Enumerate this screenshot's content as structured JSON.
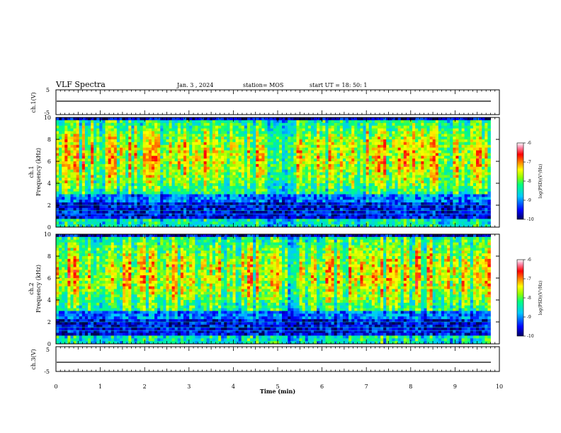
{
  "header": {
    "title": "VLF Spectra",
    "date": "Jan. 3 , 2024",
    "station": "station= MOS",
    "start": "start UT =  18: 50: 1"
  },
  "chart_data": [
    {
      "type": "line",
      "name": "ch1-waveform",
      "ylabel": "ch.1(V)",
      "ylim": [
        -5,
        5
      ],
      "yticks": [
        "5",
        "-5"
      ],
      "x_range": [
        0,
        9.8
      ],
      "baseline": -0.3
    },
    {
      "type": "heatmap",
      "name": "ch1-spectrogram",
      "ylabel": [
        "ch.1",
        "Frequency (kHz)"
      ],
      "ylim": [
        0,
        10
      ],
      "yticks": [
        "0",
        "2",
        "4",
        "6",
        "8",
        "10"
      ],
      "x_range": [
        0,
        9.8
      ],
      "colorbar": {
        "label": "log(PSD)(V²/Hz)",
        "range": [
          -10,
          -6
        ],
        "ticks": [
          "-6",
          "-7",
          "-8",
          "-9",
          "-10"
        ]
      },
      "quiet_segments_min": [
        [
          4.7,
          5.3
        ]
      ]
    },
    {
      "type": "heatmap",
      "name": "ch2-spectrogram",
      "ylabel": [
        "ch.2",
        "Frequency (kHz)"
      ],
      "ylim": [
        0,
        10
      ],
      "yticks": [
        "0",
        "2",
        "4",
        "6",
        "8",
        "10"
      ],
      "x_range": [
        0,
        9.8
      ],
      "colorbar": {
        "label": "log(PSD)(V²/Hz)",
        "range": [
          -10,
          -6
        ],
        "ticks": [
          "-6",
          "-7",
          "-8",
          "-9",
          "-10"
        ]
      },
      "quiet_segments_min": [
        [
          5.2,
          5.4
        ]
      ]
    },
    {
      "type": "line",
      "name": "ch3-waveform",
      "ylabel": "ch.3(V)",
      "ylim": [
        -5,
        5
      ],
      "yticks": [
        "5",
        "-5"
      ],
      "x_range": [
        0,
        9.8
      ],
      "baseline": -0.3
    }
  ],
  "xaxis": {
    "label": "Time (min)",
    "xlim": [
      0,
      10
    ],
    "ticks": [
      "0",
      "1",
      "2",
      "3",
      "4",
      "5",
      "6",
      "7",
      "8",
      "9",
      "10"
    ]
  },
  "colors": {
    "axis": "#000000",
    "colormap": [
      "#000066",
      "#0000ff",
      "#00bfff",
      "#00ff80",
      "#a0ff00",
      "#ffff00",
      "#ff8000",
      "#ff0000",
      "#ff99bb",
      "#ffffff"
    ]
  }
}
